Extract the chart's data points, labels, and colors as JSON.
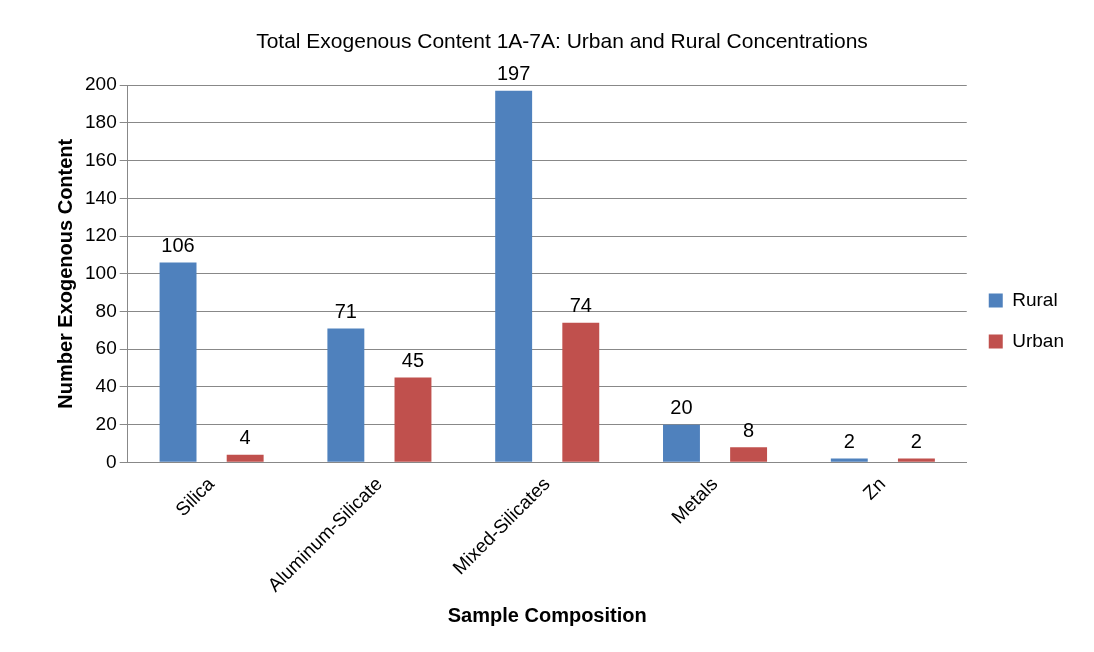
{
  "chart_data": {
    "type": "bar",
    "title": "Total Exogenous Content 1A-7A: Urban and Rural Concentrations",
    "xlabel": "Sample Composition",
    "ylabel": "Number Exogenous Content",
    "categories": [
      "Silica",
      "Aluminum-Silicate",
      "Mixed-Silicates",
      "Metals",
      "Zn"
    ],
    "series": [
      {
        "name": "Rural",
        "color": "#4f81bd",
        "values": [
          106,
          71,
          197,
          20,
          2
        ]
      },
      {
        "name": "Urban",
        "color": "#c0504d",
        "values": [
          4,
          45,
          74,
          8,
          2
        ]
      }
    ],
    "ylim": [
      0,
      200
    ],
    "yticks": [
      0,
      20,
      40,
      60,
      80,
      100,
      120,
      140,
      160,
      180,
      200
    ],
    "grid": "y",
    "legend": "right",
    "data_labels": true
  }
}
